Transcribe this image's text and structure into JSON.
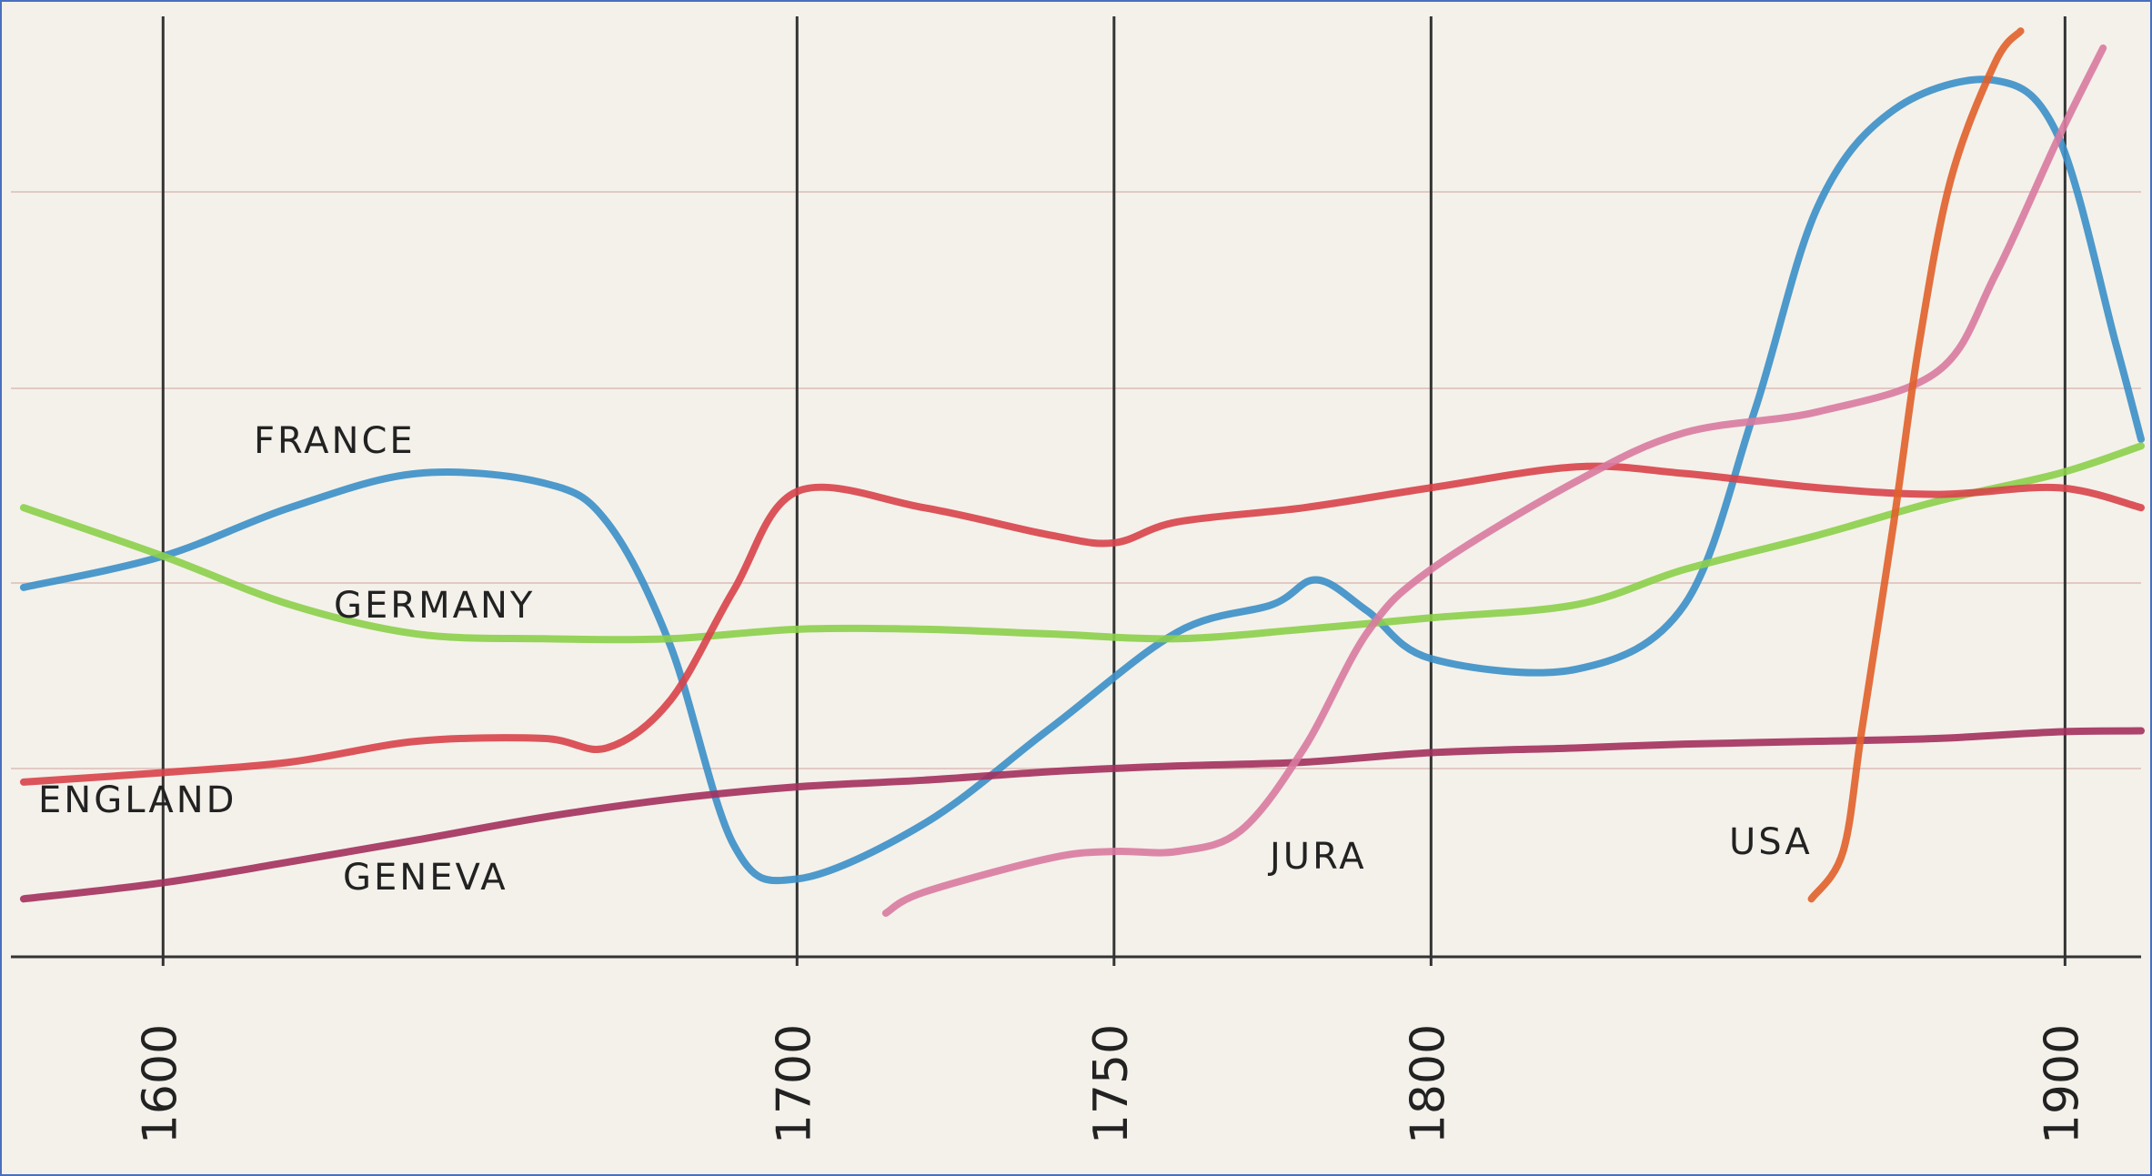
{
  "chart_data": {
    "type": "line",
    "xlim": [
      1576,
      1912
    ],
    "ylim": [
      0,
      100
    ],
    "xticks": [
      1600,
      1700,
      1750,
      1800,
      1900
    ],
    "series": [
      {
        "name": "FRANCE",
        "color": "#3b8fc8",
        "x": [
          1578,
          1600,
          1620,
          1640,
          1660,
          1670,
          1680,
          1690,
          1700,
          1720,
          1740,
          1760,
          1775,
          1782,
          1790,
          1800,
          1823,
          1840,
          1851,
          1861,
          1873,
          1889,
          1899,
          1908,
          1912
        ],
        "values": [
          38.9,
          42.2,
          47.3,
          50.9,
          49.9,
          45.8,
          32.8,
          11.8,
          8.2,
          14.0,
          24.1,
          34.2,
          37.1,
          39.7,
          36.4,
          31.4,
          30.3,
          37.1,
          57.4,
          79.0,
          89.2,
          92.3,
          86.3,
          64.6,
          54.5
        ]
      },
      {
        "name": "GERMANY",
        "color": "#8ccf4a",
        "x": [
          1578,
          1600,
          1620,
          1640,
          1660,
          1680,
          1700,
          1720,
          1740,
          1760,
          1780,
          1800,
          1823,
          1840,
          1861,
          1880,
          1899,
          1912
        ],
        "values": [
          47.3,
          42.2,
          37.1,
          34.0,
          33.5,
          33.5,
          34.5,
          34.5,
          34.0,
          33.5,
          34.5,
          35.7,
          37.1,
          40.8,
          44.4,
          48.0,
          50.9,
          53.8
        ]
      },
      {
        "name": "ENGLAND",
        "color": "#d8434a",
        "x": [
          1578,
          1600,
          1620,
          1640,
          1660,
          1670,
          1680,
          1690,
          1700,
          1720,
          1740,
          1750,
          1760,
          1780,
          1800,
          1823,
          1840,
          1861,
          1880,
          1899,
          1912
        ],
        "values": [
          18.4,
          19.4,
          20.5,
          22.7,
          23.0,
          22.0,
          27.0,
          38.6,
          49.0,
          47.3,
          44.4,
          43.6,
          45.8,
          47.3,
          49.4,
          51.6,
          50.9,
          49.4,
          48.7,
          49.4,
          47.3
        ]
      },
      {
        "name": "GENEVA",
        "color": "#a3305d",
        "x": [
          1578,
          1600,
          1620,
          1640,
          1660,
          1680,
          1700,
          1720,
          1740,
          1760,
          1780,
          1800,
          1823,
          1840,
          1861,
          1880,
          1899,
          1912
        ],
        "values": [
          6.1,
          7.8,
          10.0,
          12.3,
          14.7,
          16.6,
          17.9,
          18.6,
          19.5,
          20.1,
          20.5,
          21.5,
          22.0,
          22.4,
          22.7,
          23.0,
          23.7,
          23.8
        ]
      },
      {
        "name": "JURA",
        "color": "#d97aa0",
        "x": [
          1714,
          1720,
          1740,
          1750,
          1760,
          1770,
          1780,
          1790,
          1800,
          1823,
          1840,
          1861,
          1880,
          1889,
          1899,
          1906
        ],
        "values": [
          4.6,
          6.8,
          10.4,
          11.1,
          11.1,
          13.3,
          22.0,
          34.2,
          40.8,
          50.1,
          55.2,
          57.4,
          61.7,
          71.8,
          86.3,
          95.7
        ]
      },
      {
        "name": "USA",
        "color": "#e0602a",
        "x": [
          1860,
          1865,
          1868,
          1873,
          1877,
          1882,
          1889,
          1893
        ],
        "values": [
          6.1,
          11.1,
          24.1,
          45.8,
          64.6,
          81.9,
          94.2,
          97.5
        ]
      }
    ]
  }
}
